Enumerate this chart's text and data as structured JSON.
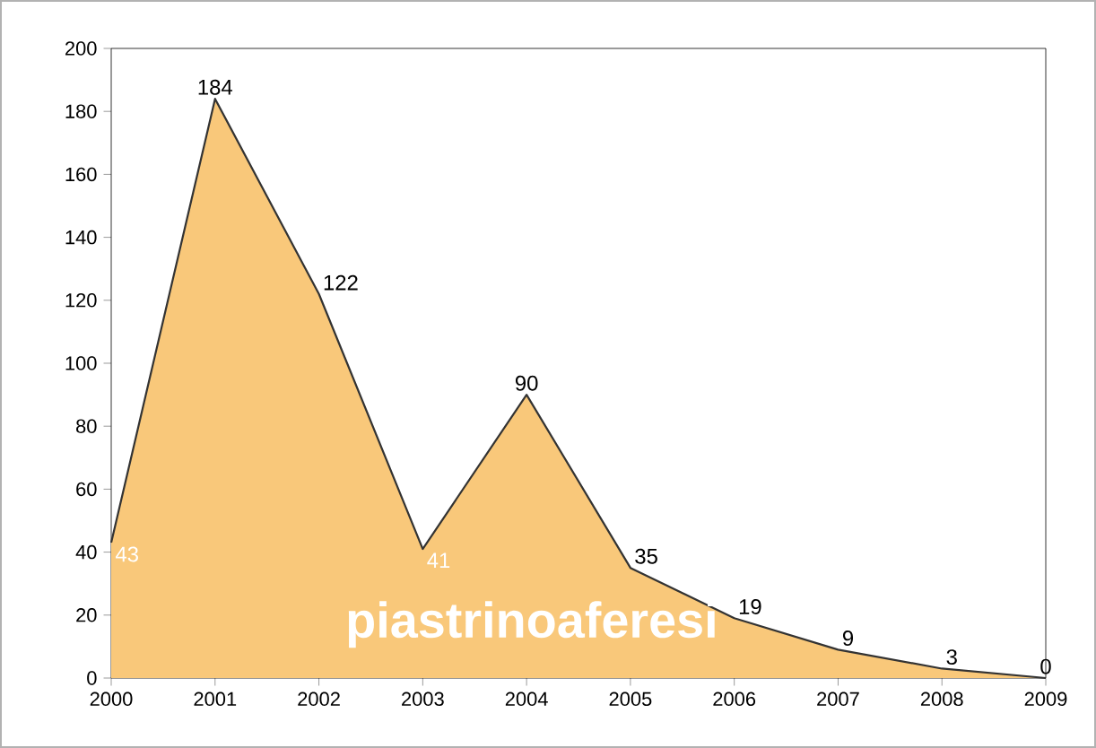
{
  "chart_data": {
    "type": "area",
    "x": [
      2000,
      2001,
      2002,
      2003,
      2004,
      2005,
      2006,
      2007,
      2008,
      2009
    ],
    "series": [
      {
        "name": "piastrinoaferesi",
        "color": "#f9c87a",
        "values": [
          43,
          184,
          122,
          41,
          90,
          35,
          19,
          9,
          3,
          0
        ]
      }
    ],
    "xlim": [
      2000,
      2009
    ],
    "ylim": [
      0,
      200
    ],
    "xticks": [
      2000,
      2001,
      2002,
      2003,
      2004,
      2005,
      2006,
      2007,
      2008,
      2009
    ],
    "yticks": [
      0,
      20,
      40,
      60,
      80,
      100,
      120,
      140,
      160,
      180,
      200
    ],
    "data_labels": true,
    "grid": false,
    "legend": false
  }
}
